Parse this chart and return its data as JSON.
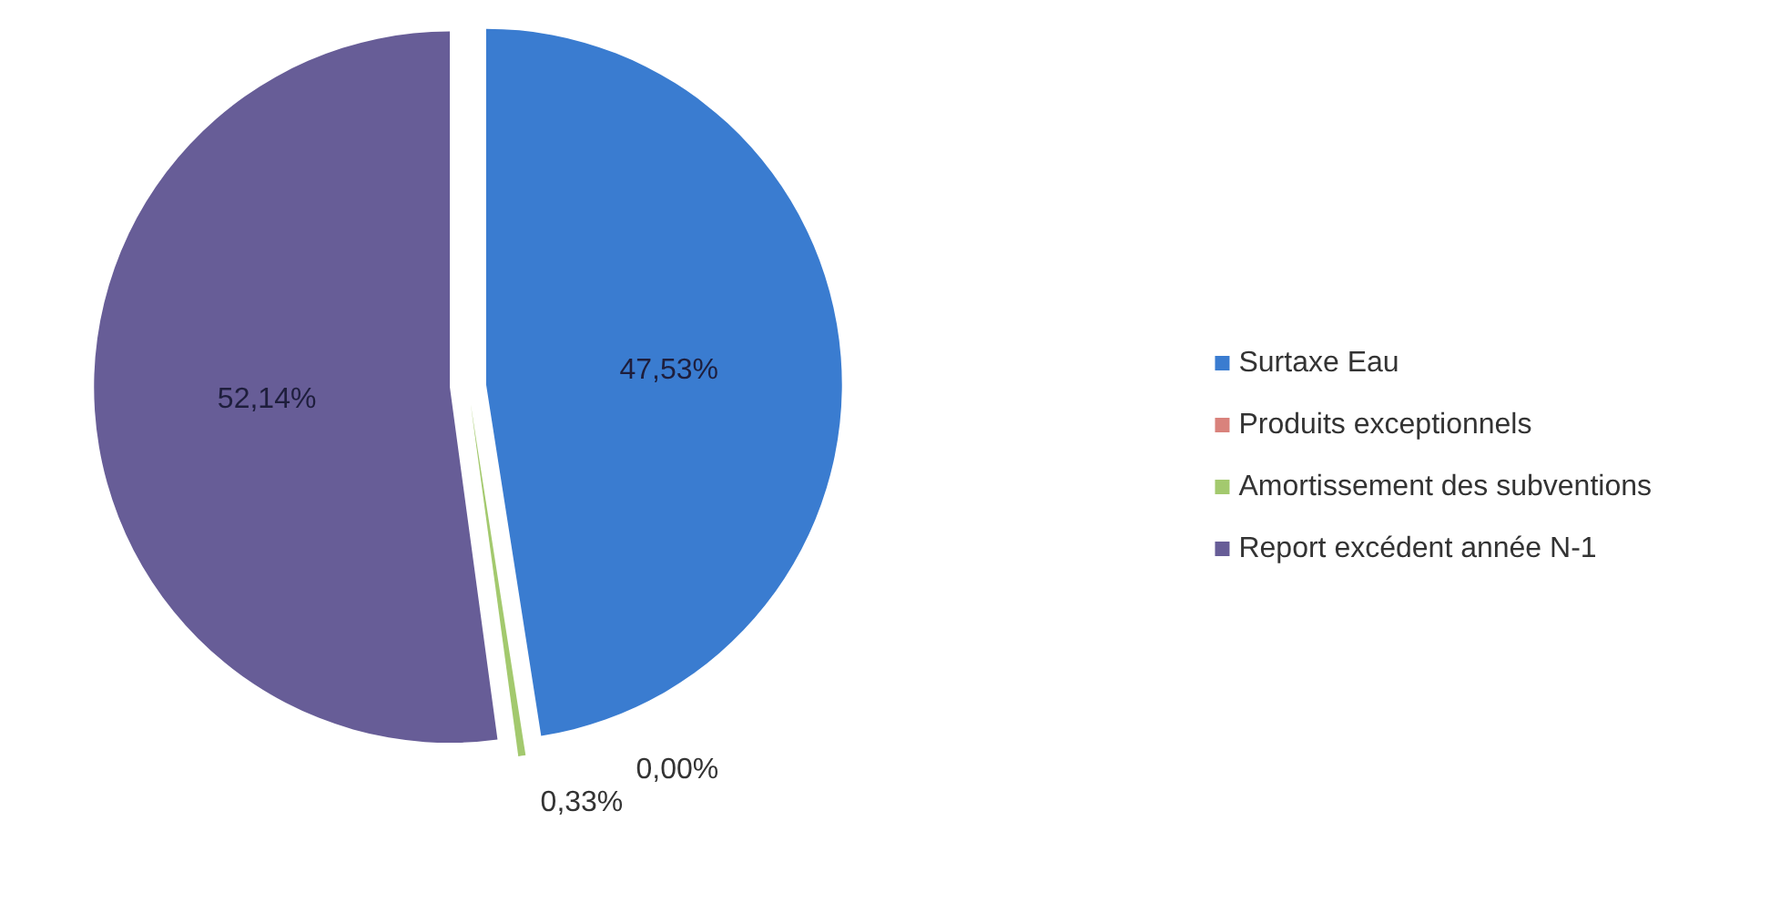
{
  "chart_data": {
    "type": "pie",
    "categories": [
      "Surtaxe Eau",
      "Produits exceptionnels",
      "Amortissement des subventions",
      "Report excédent année N-1"
    ],
    "values": [
      47.53,
      0.0,
      0.33,
      52.14
    ],
    "colors": [
      "#3a7cd0",
      "#d9827c",
      "#a3c96e",
      "#675d97"
    ],
    "value_labels": [
      "47,53%",
      "0,00%",
      "0,33%",
      "52,14%"
    ],
    "legend": "right"
  }
}
